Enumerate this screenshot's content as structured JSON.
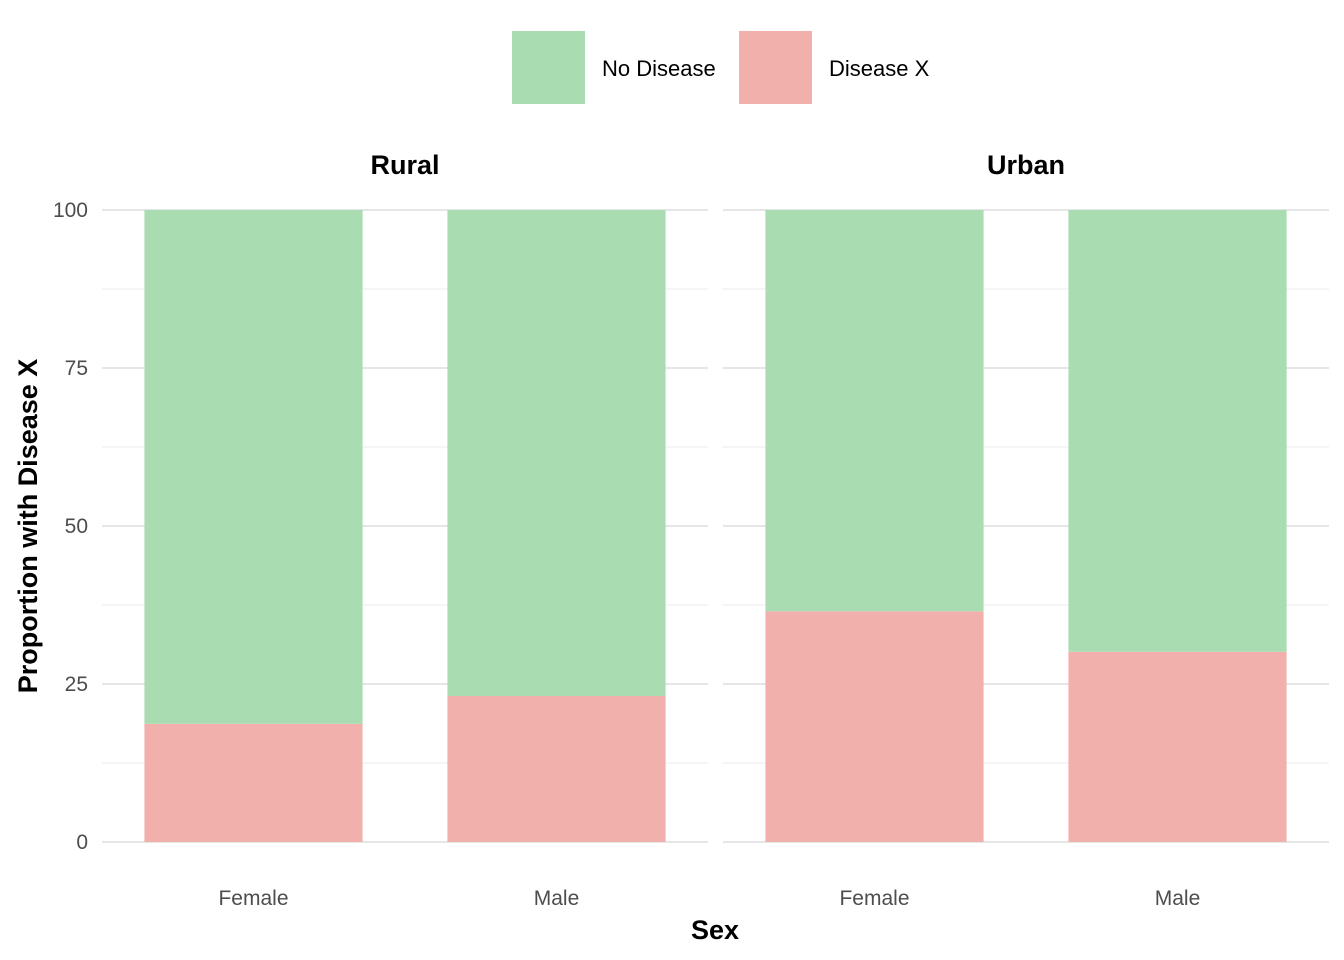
{
  "chart_data": {
    "type": "bar",
    "stacked": true,
    "facet_by": "area",
    "facets": [
      "Rural",
      "Urban"
    ],
    "categories": [
      "Female",
      "Male"
    ],
    "xlabel": "Sex",
    "ylabel": "Proportion with Disease X",
    "ylim": [
      0,
      100
    ],
    "yticks": [
      0,
      25,
      50,
      75,
      100
    ],
    "grid": true,
    "legend": {
      "placement": "top",
      "entries": [
        "No Disease",
        "Disease X"
      ]
    },
    "series": [
      {
        "name": "Disease X",
        "color": "#f1b0ab",
        "values": {
          "Rural": [
            18.7,
            23.1
          ],
          "Urban": [
            36.5,
            30.1
          ]
        }
      },
      {
        "name": "No Disease",
        "color": "#aadcb1",
        "values": {
          "Rural": [
            81.3,
            76.9
          ],
          "Urban": [
            63.5,
            69.9
          ]
        }
      }
    ]
  }
}
